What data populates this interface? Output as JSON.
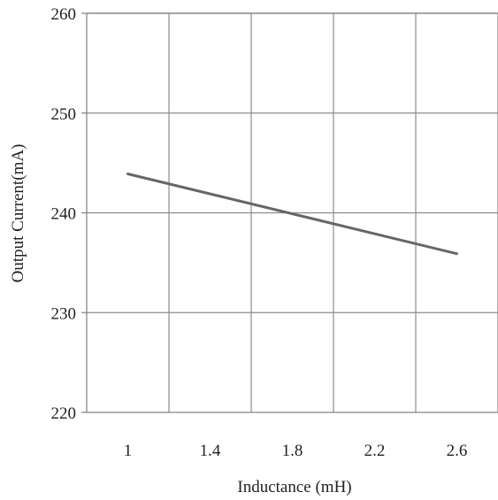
{
  "chart_data": {
    "type": "line",
    "title": "",
    "xlabel": "Inductance (mH)",
    "ylabel": "Output Current(mA)",
    "xlim": [
      0.8,
      2.8
    ],
    "ylim": [
      220,
      260
    ],
    "x_ticks": [
      1,
      1.4,
      1.8,
      2.2,
      2.6
    ],
    "x_tick_labels": [
      "1",
      "1.4",
      "1.8",
      "2.2",
      "2.6"
    ],
    "y_ticks": [
      220,
      230,
      240,
      250,
      260
    ],
    "y_tick_labels": [
      "220",
      "230",
      "240",
      "250",
      "260"
    ],
    "x_gridlines": [
      1.2,
      1.6,
      2.0,
      2.4
    ],
    "grid": true,
    "legend": "none",
    "series": [
      {
        "x": [
          1.0,
          2.6
        ],
        "values": [
          243.9,
          235.9
        ],
        "color": "#666666"
      }
    ]
  }
}
